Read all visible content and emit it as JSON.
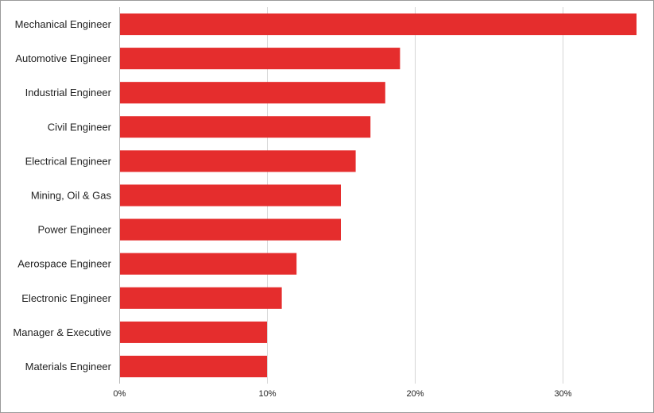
{
  "chart_data": {
    "type": "bar",
    "orientation": "horizontal",
    "categories": [
      "Mechanical Engineer",
      "Automotive Engineer",
      "Industrial Engineer",
      "Civil Engineer",
      "Electrical Engineer",
      "Mining, Oil & Gas",
      "Power Engineer",
      "Aerospace Engineer",
      "Electronic Engineer",
      "Manager & Executive",
      "Materials Engineer"
    ],
    "values": [
      35,
      19,
      18,
      17,
      16,
      15,
      15,
      12,
      11,
      10,
      10
    ],
    "xlim": [
      0,
      35
    ],
    "xticks": [
      0,
      10,
      20,
      30
    ],
    "xtick_labels": [
      "0%",
      "10%",
      "20%",
      "30%"
    ],
    "grid": true,
    "bar_color": "#e52d2d",
    "title": "",
    "xlabel": "",
    "ylabel": ""
  }
}
